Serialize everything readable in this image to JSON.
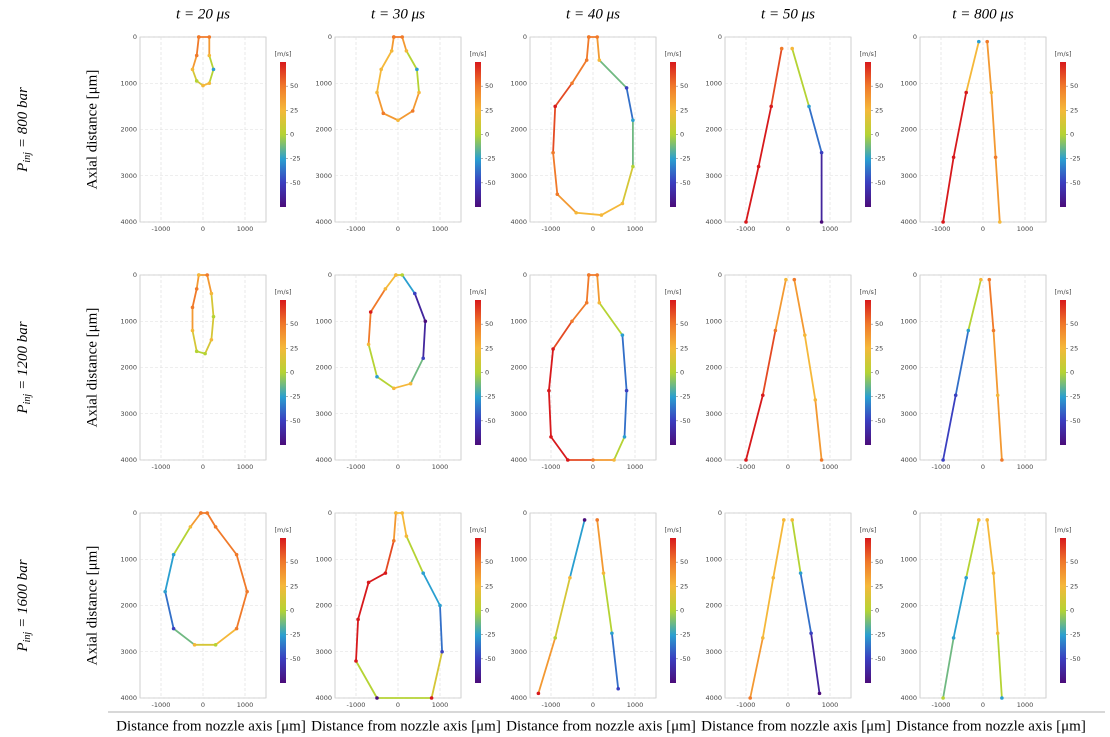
{
  "column_titles": [
    "t = 20 μs",
    "t = 30 μs",
    "t = 40 μs",
    "t = 50 μs",
    "t = 800 μs"
  ],
  "row_labels": [
    {
      "symbol": "P",
      "subscript": "inj",
      "text": "= 800 bar"
    },
    {
      "symbol": "P",
      "subscript": "inj",
      "text": "= 1200 bar"
    },
    {
      "symbol": "P",
      "subscript": "inj",
      "text": "= 1600 bar"
    }
  ],
  "y_axis_label": "Axial distance [μm]",
  "x_axis_label": "Distance from nozzle axis [μm]",
  "chart_data": [
    {
      "type": "scatter",
      "x": [
        -100,
        150,
        150,
        250,
        150,
        0,
        -150,
        -250,
        -150,
        -100
      ],
      "y": [
        0,
        0,
        400,
        700,
        1000,
        1050,
        950,
        700,
        400,
        0
      ],
      "values": [
        50,
        50,
        25,
        -25,
        25,
        25,
        0,
        25,
        50,
        50
      ],
      "xlim": [
        -1500,
        1500
      ],
      "xticks": [
        -1000,
        0,
        1000
      ],
      "ylim": [
        0,
        4000
      ],
      "yticks": [
        0,
        1000,
        2000,
        3000,
        4000
      ],
      "grid": true,
      "colorbar_label": "[m/s]",
      "clim": [
        -75,
        75
      ],
      "cticks": [
        50,
        25,
        0,
        -25,
        -50
      ]
    },
    {
      "type": "scatter",
      "x": [
        -100,
        100,
        200,
        450,
        500,
        350,
        0,
        -350,
        -500,
        -400,
        -150,
        -100
      ],
      "y": [
        0,
        0,
        300,
        700,
        1200,
        1600,
        1800,
        1650,
        1200,
        700,
        300,
        0
      ],
      "values": [
        50,
        50,
        25,
        -25,
        25,
        50,
        25,
        50,
        25,
        25,
        25,
        50
      ],
      "xlim": [
        -1500,
        1500
      ],
      "xticks": [
        -1000,
        0,
        1000
      ],
      "ylim": [
        0,
        4000
      ],
      "yticks": [
        0,
        1000,
        2000,
        3000,
        4000
      ],
      "grid": true,
      "colorbar_label": "[m/s]",
      "clim": [
        -75,
        75
      ],
      "cticks": [
        50,
        25,
        0,
        -25,
        -50
      ]
    },
    {
      "type": "scatter",
      "x": [
        -100,
        100,
        150,
        800,
        950,
        950,
        700,
        200,
        -400,
        -850,
        -950,
        -900,
        -500,
        -150,
        -100
      ],
      "y": [
        0,
        0,
        500,
        1100,
        1800,
        2800,
        3600,
        3850,
        3800,
        3400,
        2500,
        1500,
        1000,
        500,
        0
      ],
      "values": [
        50,
        50,
        25,
        -50,
        -25,
        0,
        25,
        25,
        25,
        50,
        50,
        75,
        50,
        50,
        50
      ],
      "xlim": [
        -1500,
        1500
      ],
      "xticks": [
        -1000,
        0,
        1000
      ],
      "ylim": [
        0,
        4000
      ],
      "yticks": [
        0,
        1000,
        2000,
        3000,
        4000
      ],
      "grid": true,
      "colorbar_label": "[m/s]",
      "clim": [
        -75,
        75
      ],
      "cticks": [
        50,
        25,
        0,
        -25,
        -50
      ]
    },
    {
      "type": "scatter",
      "x": [
        -150,
        -400,
        -700,
        -1000,
        null,
        100,
        500,
        800,
        800
      ],
      "y": [
        250,
        1500,
        2800,
        4000,
        null,
        250,
        1500,
        2500,
        4000
      ],
      "values": [
        50,
        75,
        75,
        75,
        null,
        25,
        -25,
        -50,
        -75
      ],
      "xlim": [
        -1500,
        1500
      ],
      "xticks": [
        -1000,
        0,
        1000
      ],
      "ylim": [
        0,
        4000
      ],
      "yticks": [
        0,
        1000,
        2000,
        3000,
        4000
      ],
      "grid": true,
      "colorbar_label": "[m/s]",
      "clim": [
        -75,
        75
      ],
      "cticks": [
        50,
        25,
        0,
        -25,
        -50
      ]
    },
    {
      "type": "scatter",
      "x": [
        -100,
        -400,
        -700,
        -950,
        null,
        100,
        200,
        300,
        400
      ],
      "y": [
        100,
        1200,
        2600,
        4000,
        null,
        100,
        1200,
        2600,
        4000
      ],
      "values": [
        -25,
        75,
        75,
        75,
        null,
        50,
        25,
        50,
        25
      ],
      "xlim": [
        -1500,
        1500
      ],
      "xticks": [
        -1000,
        0,
        1000
      ],
      "ylim": [
        0,
        4000
      ],
      "yticks": [
        0,
        1000,
        2000,
        3000,
        4000
      ],
      "grid": true,
      "colorbar_label": "[m/s]",
      "clim": [
        -75,
        75
      ],
      "cticks": [
        50,
        25,
        0,
        -25,
        -50
      ]
    },
    {
      "type": "scatter",
      "x": [
        -100,
        100,
        200,
        250,
        200,
        50,
        -150,
        -250,
        -250,
        -150,
        -100
      ],
      "y": [
        0,
        0,
        400,
        900,
        1400,
        1700,
        1650,
        1200,
        700,
        300,
        0
      ],
      "values": [
        25,
        50,
        25,
        0,
        25,
        0,
        0,
        25,
        50,
        50,
        25
      ],
      "xlim": [
        -1500,
        1500
      ],
      "xticks": [
        -1000,
        0,
        1000
      ],
      "ylim": [
        0,
        4000
      ],
      "yticks": [
        0,
        1000,
        2000,
        3000,
        4000
      ],
      "grid": true,
      "colorbar_label": "[m/s]",
      "clim": [
        -75,
        75
      ],
      "cticks": [
        50,
        25,
        0,
        -25,
        -50
      ]
    },
    {
      "type": "scatter",
      "x": [
        -50,
        100,
        400,
        650,
        600,
        300,
        -100,
        -500,
        -700,
        -650,
        -300,
        -50
      ],
      "y": [
        0,
        0,
        400,
        1000,
        1800,
        2350,
        2450,
        2200,
        1500,
        800,
        300,
        0
      ],
      "values": [
        25,
        0,
        -50,
        -75,
        -50,
        25,
        25,
        -25,
        25,
        75,
        25,
        25
      ],
      "xlim": [
        -1500,
        1500
      ],
      "xticks": [
        -1000,
        0,
        1000
      ],
      "ylim": [
        0,
        4000
      ],
      "yticks": [
        0,
        1000,
        2000,
        3000,
        4000
      ],
      "grid": true,
      "colorbar_label": "[m/s]",
      "clim": [
        -75,
        75
      ],
      "cticks": [
        50,
        25,
        0,
        -25,
        -50
      ]
    },
    {
      "type": "scatter",
      "x": [
        -100,
        100,
        150,
        700,
        800,
        750,
        500,
        0,
        -600,
        -1000,
        -1050,
        -950,
        -500,
        -150,
        -100
      ],
      "y": [
        0,
        0,
        600,
        1300,
        2500,
        3500,
        4000,
        4000,
        4000,
        3500,
        2500,
        1600,
        1000,
        600,
        0
      ],
      "values": [
        50,
        50,
        25,
        -25,
        -50,
        -25,
        25,
        50,
        75,
        75,
        75,
        75,
        50,
        50,
        50
      ],
      "xlim": [
        -1500,
        1500
      ],
      "xticks": [
        -1000,
        0,
        1000
      ],
      "ylim": [
        0,
        4000
      ],
      "yticks": [
        0,
        1000,
        2000,
        3000,
        4000
      ],
      "grid": true,
      "colorbar_label": "[m/s]",
      "clim": [
        -75,
        75
      ],
      "cticks": [
        50,
        25,
        0,
        -25,
        -50
      ]
    },
    {
      "type": "scatter",
      "x": [
        -50,
        -300,
        -600,
        -1000,
        null,
        150,
        400,
        650,
        800
      ],
      "y": [
        100,
        1200,
        2600,
        4000,
        null,
        100,
        1300,
        2700,
        4000
      ],
      "values": [
        25,
        50,
        75,
        75,
        null,
        50,
        25,
        25,
        50
      ],
      "xlim": [
        -1500,
        1500
      ],
      "xticks": [
        -1000,
        0,
        1000
      ],
      "ylim": [
        0,
        4000
      ],
      "yticks": [
        0,
        1000,
        2000,
        3000,
        4000
      ],
      "grid": true,
      "colorbar_label": "[m/s]",
      "clim": [
        -75,
        75
      ],
      "cticks": [
        50,
        25,
        0,
        -25,
        -50
      ]
    },
    {
      "type": "scatter",
      "x": [
        -50,
        -350,
        -650,
        -950,
        null,
        150,
        250,
        350,
        450
      ],
      "y": [
        100,
        1200,
        2600,
        4000,
        null,
        100,
        1200,
        2600,
        4000
      ],
      "values": [
        25,
        -25,
        -50,
        -50,
        null,
        50,
        50,
        25,
        50
      ],
      "xlim": [
        -1500,
        1500
      ],
      "xticks": [
        -1000,
        0,
        1000
      ],
      "ylim": [
        0,
        4000
      ],
      "yticks": [
        0,
        1000,
        2000,
        3000,
        4000
      ],
      "grid": true,
      "colorbar_label": "[m/s]",
      "clim": [
        -75,
        75
      ],
      "cticks": [
        50,
        25,
        0,
        -25,
        -50
      ]
    },
    {
      "type": "scatter",
      "x": [
        -50,
        100,
        300,
        800,
        1050,
        800,
        300,
        -200,
        -700,
        -900,
        -700,
        -300,
        -50
      ],
      "y": [
        0,
        0,
        300,
        900,
        1700,
        2500,
        2850,
        2850,
        2500,
        1700,
        900,
        300,
        0
      ],
      "values": [
        50,
        50,
        50,
        50,
        50,
        50,
        0,
        25,
        -50,
        -25,
        -25,
        25,
        50
      ],
      "xlim": [
        -1500,
        1500
      ],
      "xticks": [
        -1000,
        0,
        1000
      ],
      "ylim": [
        0,
        4000
      ],
      "yticks": [
        0,
        1000,
        2000,
        3000,
        4000
      ],
      "grid": true,
      "colorbar_label": "[m/s]",
      "clim": [
        -75,
        75
      ],
      "cticks": [
        50,
        25,
        0,
        -25,
        -50
      ]
    },
    {
      "type": "scatter",
      "x": [
        -50,
        100,
        200,
        600,
        1000,
        1050,
        800,
        -500,
        -1000,
        -950,
        -700,
        -300,
        -100,
        -50
      ],
      "y": [
        0,
        0,
        500,
        1300,
        2000,
        3000,
        4000,
        4000,
        3200,
        2300,
        1500,
        1300,
        600,
        0
      ],
      "values": [
        25,
        25,
        25,
        -25,
        -25,
        -50,
        75,
        -75,
        75,
        75,
        75,
        75,
        50,
        25
      ],
      "xlim": [
        -1500,
        1500
      ],
      "xticks": [
        -1000,
        0,
        1000
      ],
      "ylim": [
        0,
        4000
      ],
      "yticks": [
        0,
        1000,
        2000,
        3000,
        4000
      ],
      "grid": true,
      "colorbar_label": "[m/s]",
      "clim": [
        -75,
        75
      ],
      "cticks": [
        50,
        25,
        0,
        -25,
        -50
      ]
    },
    {
      "type": "scatter",
      "x": [
        -200,
        -550,
        -900,
        -1300,
        null,
        100,
        250,
        450,
        600
      ],
      "y": [
        150,
        1400,
        2700,
        3900,
        null,
        150,
        1300,
        2600,
        3800
      ],
      "values": [
        -75,
        25,
        0,
        75,
        null,
        50,
        25,
        -25,
        -50
      ],
      "xlim": [
        -1500,
        1500
      ],
      "xticks": [
        -1000,
        0,
        1000
      ],
      "ylim": [
        0,
        4000
      ],
      "yticks": [
        0,
        1000,
        2000,
        3000,
        4000
      ],
      "grid": true,
      "colorbar_label": "[m/s]",
      "clim": [
        -75,
        75
      ],
      "cticks": [
        50,
        25,
        0,
        -25,
        -50
      ]
    },
    {
      "type": "scatter",
      "x": [
        -100,
        -350,
        -600,
        -900,
        null,
        100,
        300,
        550,
        750
      ],
      "y": [
        150,
        1400,
        2700,
        4000,
        null,
        150,
        1300,
        2600,
        3900
      ],
      "values": [
        25,
        25,
        25,
        50,
        null,
        25,
        -25,
        -50,
        -75
      ],
      "xlim": [
        -1500,
        1500
      ],
      "xticks": [
        -1000,
        0,
        1000
      ],
      "ylim": [
        0,
        4000
      ],
      "yticks": [
        0,
        1000,
        2000,
        3000,
        4000
      ],
      "grid": true,
      "colorbar_label": "[m/s]",
      "clim": [
        -75,
        75
      ],
      "cticks": [
        50,
        25,
        0,
        -25,
        -50
      ]
    },
    {
      "type": "scatter",
      "x": [
        -100,
        -400,
        -700,
        -950,
        null,
        100,
        250,
        350,
        450
      ],
      "y": [
        150,
        1400,
        2700,
        4000,
        null,
        150,
        1300,
        2600,
        4000
      ],
      "values": [
        25,
        -25,
        -25,
        0,
        null,
        25,
        25,
        25,
        -25
      ],
      "xlim": [
        -1500,
        1500
      ],
      "xticks": [
        -1000,
        0,
        1000
      ],
      "ylim": [
        0,
        4000
      ],
      "yticks": [
        0,
        1000,
        2000,
        3000,
        4000
      ],
      "grid": true,
      "colorbar_label": "[m/s]",
      "clim": [
        -75,
        75
      ],
      "cticks": [
        50,
        25,
        0,
        -25,
        -50
      ]
    }
  ]
}
